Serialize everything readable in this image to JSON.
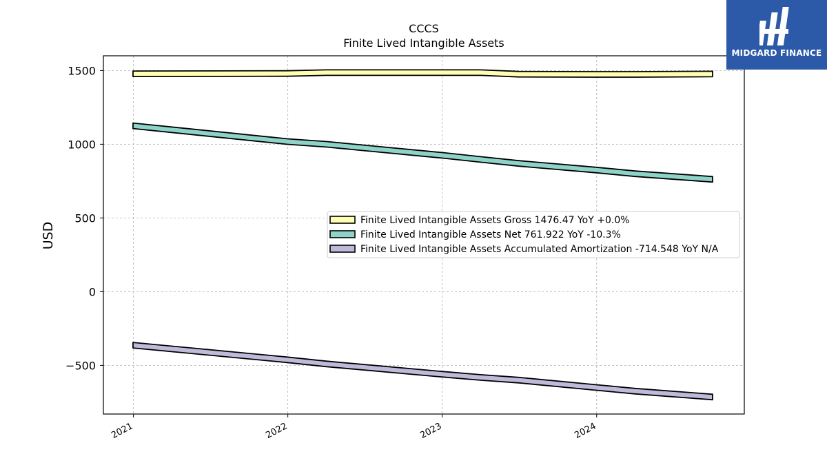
{
  "logo": {
    "text": "MIDGARD FINANCE",
    "icon": "midgard-logo-icon",
    "bg_color": "#2d5aa8"
  },
  "chart_data": {
    "type": "area",
    "title": "CCCS",
    "subtitle": "Finite Lived Intangible Assets",
    "ylabel": "USD",
    "xlabel": "",
    "ylim": [
      -830,
      1600
    ],
    "xlim": [
      "2020-10-22",
      "2024-12-15"
    ],
    "yticks": [
      1500,
      1000,
      500,
      0,
      -500
    ],
    "ytick_labels": [
      "1500",
      "1000",
      "500",
      "0",
      "−500"
    ],
    "xticks": [
      "2021-01-01",
      "2022-01-01",
      "2023-01-01",
      "2024-01-01"
    ],
    "xtick_labels": [
      "2021",
      "2022",
      "2023",
      "2024"
    ],
    "grid": true,
    "legend_placement": "center-right",
    "x": [
      "2020-12-31",
      "2021-12-31",
      "2022-04-01",
      "2022-12-31",
      "2023-04-01",
      "2023-07-01",
      "2023-12-31",
      "2024-04-01",
      "2024-10-01"
    ],
    "series": [
      {
        "name": "Finite Lived Intangible Assets Gross",
        "legend_label": "Finite Lived Intangible Assets Gross  1476.47 YoY +0.0%",
        "color": "#ffffb3",
        "values": [
          1478,
          1480,
          1486,
          1486,
          1486,
          1475,
          1474,
          1474,
          1476.47
        ]
      },
      {
        "name": "Finite Lived Intangible Assets Net",
        "legend_label": "Finite Lived Intangible Assets Net  761.922 YoY -10.3%",
        "color": "#8dd3c7",
        "values": [
          1125,
          1018,
          1000,
          925,
          897,
          870,
          825,
          800,
          761.922
        ]
      },
      {
        "name": "Finite Lived Intangible Assets Accumulated Amortization",
        "legend_label": "Finite Lived Intangible Assets Accumulated Amortization  -714.548 YoY N/A",
        "color": "#bebada",
        "values": [
          -363,
          -462,
          -490,
          -560,
          -582,
          -600,
          -650,
          -675,
          -714.548
        ]
      }
    ]
  }
}
